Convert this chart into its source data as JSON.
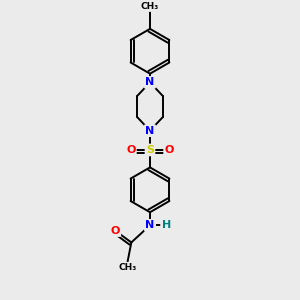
{
  "bg_color": "#ebebeb",
  "bond_color": "#000000",
  "bond_width": 1.4,
  "atom_colors": {
    "N": "#0000ff",
    "O": "#ff0000",
    "S": "#cccc00",
    "H": "#008080",
    "C": "#000000"
  },
  "font_size_atom": 8,
  "font_size_ch3": 6.5,
  "xlim": [
    -1.2,
    1.2
  ],
  "ylim": [
    -4.6,
    4.6
  ]
}
